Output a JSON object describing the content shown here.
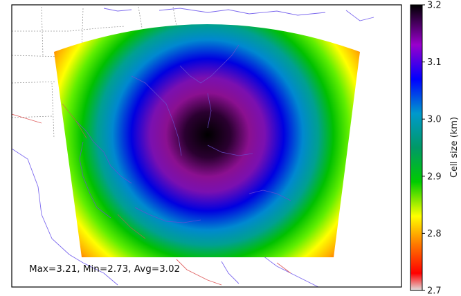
{
  "stats_text": "Max=3.21, Min=2.73, Avg=3.02",
  "colorbar": {
    "label": "Cell size (km)",
    "ticks": [
      "2.7",
      "2.8",
      "2.9",
      "3.0",
      "3.1",
      "3.2"
    ],
    "tick_values": [
      2.7,
      2.8,
      2.9,
      3.0,
      3.1,
      3.2
    ],
    "range": [
      2.7,
      3.2
    ],
    "colormap": [
      "#d9d9d9",
      "#ff0000",
      "#ffa500",
      "#ffff00",
      "#00cc00",
      "#009966",
      "#0099cc",
      "#0000ff",
      "#9900cc",
      "#000000"
    ]
  },
  "field": {
    "max": 3.21,
    "min": 2.73,
    "avg": 3.02
  },
  "map": {
    "coastline_color": "#7b68ee",
    "border_color": "#e06060",
    "state_line_color": "#888888"
  }
}
